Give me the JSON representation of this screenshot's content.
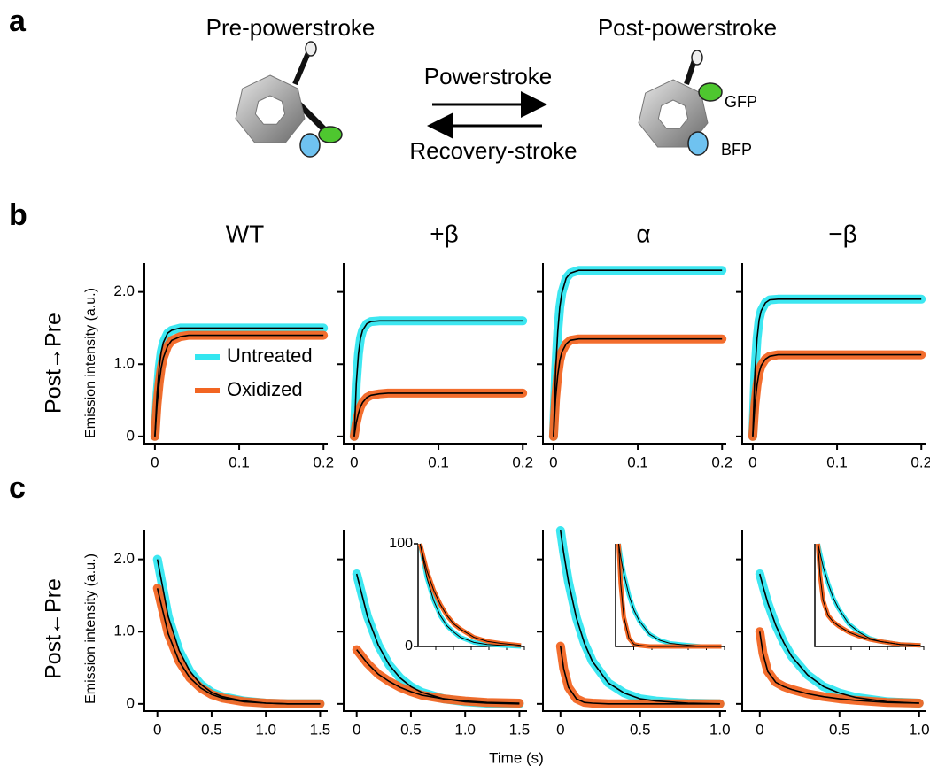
{
  "figure": {
    "panel_labels": [
      "a",
      "b",
      "c"
    ],
    "row_labels": [
      "Post→Pre",
      "Post←Pre"
    ],
    "ylabel": "Emission intensity (a.u.)",
    "xlabel": "Time (s)",
    "fit_color": "#000000"
  },
  "diagram": {
    "left_state": "Pre-powerstroke",
    "right_state": "Post-powerstroke",
    "forward": "Powerstroke",
    "reverse": "Recovery-stroke",
    "gfp": "GFP",
    "bfp": "BFP"
  },
  "chart_data": [
    {
      "type": "line",
      "title": "WT",
      "x": [
        0,
        0.0025,
        0.005,
        0.0075,
        0.01,
        0.015,
        0.02,
        0.03,
        0.04,
        0.06,
        0.08,
        0.1,
        0.12,
        0.14,
        0.16,
        0.18,
        0.2
      ],
      "xlim": [
        -0.0125,
        0.205
      ],
      "xticks": [
        0,
        0.1,
        0.2
      ],
      "ylim": [
        -0.1,
        2.4
      ],
      "yticks": [
        0,
        {
          "value": 1,
          "label": "1.0"
        },
        {
          "value": 2,
          "label": "2.0"
        }
      ],
      "ytick_labels": true,
      "legend": "lower-right",
      "series": [
        {
          "name": "Untreated",
          "color": "#33e6f0",
          "values": [
            0,
            0.59,
            0.95,
            1.17,
            1.3,
            1.43,
            1.47,
            1.5,
            1.5,
            1.5,
            1.5,
            1.5,
            1.5,
            1.5,
            1.5,
            1.5,
            1.5
          ]
        },
        {
          "name": "Oxidized",
          "color": "#f26522",
          "values": [
            0,
            0.44,
            0.74,
            0.95,
            1.09,
            1.25,
            1.33,
            1.38,
            1.4,
            1.4,
            1.4,
            1.4,
            1.4,
            1.4,
            1.4,
            1.4,
            1.4
          ]
        }
      ]
    },
    {
      "type": "line",
      "title": "+β",
      "x": [
        0,
        0.0025,
        0.005,
        0.0075,
        0.01,
        0.015,
        0.02,
        0.03,
        0.04,
        0.06,
        0.08,
        0.1,
        0.12,
        0.14,
        0.16,
        0.18,
        0.2
      ],
      "xlim": [
        -0.0125,
        0.205
      ],
      "xticks": [
        0,
        0.1,
        0.2
      ],
      "ylim": [
        -0.1,
        2.4
      ],
      "yticks": [
        0,
        1,
        2
      ],
      "ytick_labels": false,
      "series": [
        {
          "color": "#33e6f0",
          "values": [
            0,
            0.74,
            1.14,
            1.36,
            1.47,
            1.56,
            1.59,
            1.6,
            1.6,
            1.6,
            1.6,
            1.6,
            1.6,
            1.6,
            1.6,
            1.6,
            1.6
          ]
        },
        {
          "color": "#f26522",
          "values": [
            0,
            0.19,
            0.32,
            0.41,
            0.47,
            0.54,
            0.57,
            0.59,
            0.6,
            0.6,
            0.6,
            0.6,
            0.6,
            0.6,
            0.6,
            0.6,
            0.6
          ]
        }
      ]
    },
    {
      "type": "line",
      "title": "α",
      "x": [
        0,
        0.0025,
        0.005,
        0.0075,
        0.01,
        0.015,
        0.02,
        0.03,
        0.04,
        0.06,
        0.08,
        0.1,
        0.12,
        0.14,
        0.16,
        0.18,
        0.2
      ],
      "xlim": [
        -0.0125,
        0.205
      ],
      "xticks": [
        0,
        0.1,
        0.2
      ],
      "ylim": [
        -0.1,
        2.4
      ],
      "yticks": [
        0,
        1,
        2
      ],
      "ytick_labels": false,
      "series": [
        {
          "color": "#33e6f0",
          "values": [
            0,
            0.9,
            1.45,
            1.79,
            1.99,
            2.19,
            2.26,
            2.3,
            2.3,
            2.3,
            2.3,
            2.3,
            2.3,
            2.3,
            2.3,
            2.3,
            2.3
          ]
        },
        {
          "color": "#f26522",
          "values": [
            0,
            0.53,
            0.85,
            1.05,
            1.17,
            1.28,
            1.33,
            1.35,
            1.35,
            1.35,
            1.35,
            1.35,
            1.35,
            1.35,
            1.35,
            1.35,
            1.35
          ]
        }
      ]
    },
    {
      "type": "line",
      "title": "−β",
      "x": [
        0,
        0.0025,
        0.005,
        0.0075,
        0.01,
        0.015,
        0.02,
        0.03,
        0.04,
        0.06,
        0.08,
        0.1,
        0.12,
        0.14,
        0.16,
        0.18,
        0.2
      ],
      "xlim": [
        -0.0125,
        0.205
      ],
      "xticks": [
        0,
        0.1,
        0.2
      ],
      "ylim": [
        -0.1,
        2.4
      ],
      "yticks": [
        0,
        1,
        2
      ],
      "ytick_labels": false,
      "series": [
        {
          "color": "#33e6f0",
          "values": [
            0,
            0.88,
            1.35,
            1.61,
            1.74,
            1.85,
            1.89,
            1.9,
            1.9,
            1.9,
            1.9,
            1.9,
            1.9,
            1.9,
            1.9,
            1.9,
            1.9
          ]
        },
        {
          "color": "#f26522",
          "values": [
            0,
            0.44,
            0.71,
            0.88,
            0.98,
            1.07,
            1.11,
            1.13,
            1.13,
            1.13,
            1.13,
            1.13,
            1.13,
            1.13,
            1.13,
            1.13,
            1.13
          ]
        }
      ]
    },
    {
      "type": "line",
      "x": [
        0,
        0.1,
        0.2,
        0.3,
        0.4,
        0.5,
        0.6,
        0.8,
        1.0,
        1.2,
        1.5
      ],
      "xlim": [
        -0.12,
        1.57
      ],
      "xticks": [
        0,
        0.5,
        {
          "value": 1,
          "label": "1.0"
        },
        1.5
      ],
      "ylim": [
        -0.1,
        2.4
      ],
      "yticks": [
        0,
        {
          "value": 1,
          "label": "1.0"
        },
        {
          "value": 2,
          "label": "2.0"
        }
      ],
      "ytick_labels": true,
      "series": [
        {
          "color": "#33e6f0",
          "values": [
            2.0,
            1.21,
            0.74,
            0.45,
            0.27,
            0.16,
            0.1,
            0.04,
            0.01,
            0,
            0
          ]
        },
        {
          "color": "#f26522",
          "values": [
            1.6,
            0.97,
            0.59,
            0.36,
            0.22,
            0.13,
            0.08,
            0.03,
            0.01,
            0,
            0
          ]
        }
      ]
    },
    {
      "type": "line",
      "x": [
        0,
        0.1,
        0.2,
        0.3,
        0.4,
        0.5,
        0.6,
        0.8,
        1.0,
        1.2,
        1.5
      ],
      "xlim": [
        -0.12,
        1.57
      ],
      "xticks": [
        0,
        0.5,
        {
          "value": 1,
          "label": "1.0"
        },
        1.5
      ],
      "ylim": [
        -0.1,
        2.4
      ],
      "yticks": [
        0,
        1,
        2
      ],
      "ytick_labels": false,
      "series": [
        {
          "color": "#33e6f0",
          "values": [
            1.8,
            1.21,
            0.81,
            0.54,
            0.36,
            0.24,
            0.16,
            0.07,
            0.03,
            0.01,
            0
          ]
        },
        {
          "color": "#f26522",
          "values": [
            0.75,
            0.56,
            0.41,
            0.31,
            0.23,
            0.17,
            0.12,
            0.07,
            0.04,
            0.02,
            0.01
          ]
        }
      ],
      "inset": {
        "x": [
          0,
          0.1,
          0.2,
          0.3,
          0.4,
          0.5,
          0.6,
          0.8,
          1.0,
          1.2,
          1.5
        ],
        "xlim": [
          -0.03,
          1.55
        ],
        "ylim": [
          0,
          100
        ],
        "yticks": [
          0,
          100
        ],
        "series": [
          {
            "color": "#33e6f0",
            "values": [
              100,
              67,
              45,
              30,
              20,
              14,
              9,
              4,
              2,
              1,
              0
            ]
          },
          {
            "color": "#f26522",
            "values": [
              100,
              74,
              55,
              41,
              30,
              22,
              17,
              9,
              5,
              3,
              1
            ]
          }
        ]
      }
    },
    {
      "type": "line",
      "x": [
        0,
        0.02,
        0.05,
        0.1,
        0.15,
        0.2,
        0.3,
        0.4,
        0.5,
        0.6,
        0.8,
        1.0
      ],
      "xlim": [
        -0.11,
        1.04
      ],
      "xticks": [
        0,
        0.5,
        {
          "value": 1,
          "label": "1.0"
        }
      ],
      "ylim": [
        -0.1,
        2.4
      ],
      "yticks": [
        0,
        1,
        2
      ],
      "ytick_labels": false,
      "series": [
        {
          "color": "#33e6f0",
          "values": [
            2.4,
            2.09,
            1.69,
            1.19,
            0.84,
            0.59,
            0.29,
            0.15,
            0.07,
            0.04,
            0.01,
            0
          ]
        },
        {
          "color": "#f26522",
          "values": [
            0.8,
            0.49,
            0.23,
            0.07,
            0.02,
            0.01,
            0,
            0,
            0,
            0,
            0,
            0
          ]
        }
      ],
      "inset": {
        "x": [
          0,
          0.02,
          0.05,
          0.1,
          0.15,
          0.2,
          0.3,
          0.4,
          0.5,
          0.6,
          0.8,
          1.0
        ],
        "xlim": [
          -0.03,
          1.03
        ],
        "ylim": [
          0,
          100
        ],
        "series": [
          {
            "color": "#33e6f0",
            "values": [
              100,
              87,
              71,
              50,
              35,
              25,
              12,
              6,
              3,
              2,
              0,
              0
            ]
          },
          {
            "color": "#f26522",
            "values": [
              100,
              61,
              29,
              8,
              2,
              1,
              0,
              0,
              0,
              0,
              0,
              0
            ]
          }
        ]
      }
    },
    {
      "type": "line",
      "x": [
        0,
        0.02,
        0.05,
        0.1,
        0.15,
        0.2,
        0.3,
        0.4,
        0.5,
        0.6,
        0.8,
        1.0
      ],
      "xlim": [
        -0.11,
        1.04
      ],
      "xticks": [
        0,
        0.5,
        {
          "value": 1,
          "label": "1.0"
        }
      ],
      "ylim": [
        -0.1,
        2.4
      ],
      "yticks": [
        0,
        1,
        2
      ],
      "ytick_labels": false,
      "series": [
        {
          "color": "#33e6f0",
          "values": [
            1.8,
            1.63,
            1.4,
            1.09,
            0.85,
            0.66,
            0.4,
            0.24,
            0.15,
            0.09,
            0.03,
            0.01
          ]
        },
        {
          "color": "#f26522",
          "values": [
            1.0,
            0.7,
            0.45,
            0.3,
            0.24,
            0.2,
            0.14,
            0.1,
            0.07,
            0.05,
            0.02,
            0.01
          ]
        }
      ],
      "inset": {
        "x": [
          0,
          0.02,
          0.05,
          0.1,
          0.15,
          0.2,
          0.3,
          0.4,
          0.5,
          0.6,
          0.8,
          1.0
        ],
        "xlim": [
          -0.03,
          1.03
        ],
        "ylim": [
          0,
          100
        ],
        "series": [
          {
            "color": "#33e6f0",
            "values": [
              100,
              91,
              78,
              61,
              47,
              37,
              22,
              14,
              8,
              5,
              2,
              1
            ]
          },
          {
            "color": "#f26522",
            "values": [
              100,
              70,
              45,
              30,
              24,
              20,
              14,
              10,
              7,
              5,
              2,
              1
            ]
          }
        ]
      }
    }
  ]
}
